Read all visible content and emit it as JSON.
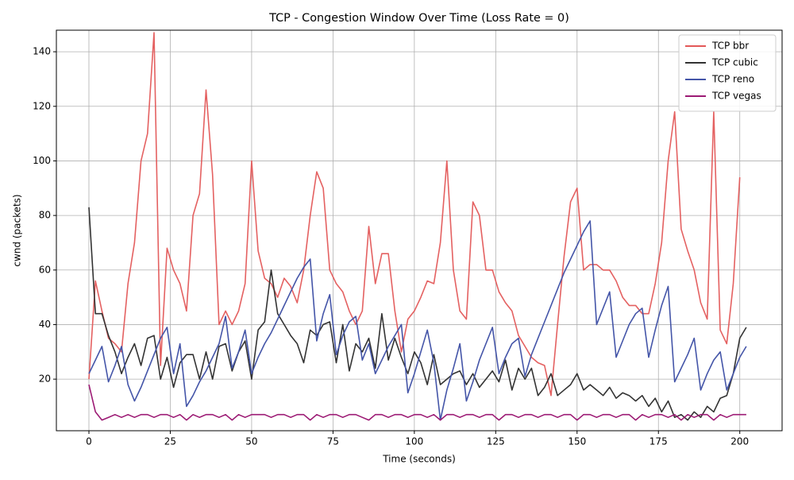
{
  "chart_data": {
    "type": "line",
    "title": "TCP - Congestion Window Over Time (Loss Rate = 0)",
    "x_label": "Time (seconds)",
    "y_label": "cwnd (packets)",
    "xlim": [
      -10,
      213
    ],
    "ylim": [
      1.1,
      147.9
    ],
    "xticks": [
      0,
      25,
      50,
      75,
      100,
      125,
      150,
      175,
      200
    ],
    "yticks": [
      20,
      40,
      60,
      80,
      100,
      120,
      140
    ],
    "grid": true,
    "legend": "upper right",
    "x": [
      0,
      2,
      4,
      6,
      8,
      10,
      12,
      14,
      16,
      18,
      20,
      22,
      24,
      26,
      28,
      30,
      32,
      34,
      36,
      38,
      40,
      42,
      44,
      46,
      48,
      50,
      52,
      54,
      56,
      58,
      60,
      62,
      64,
      66,
      68,
      70,
      72,
      74,
      76,
      78,
      80,
      82,
      84,
      86,
      88,
      90,
      92,
      94,
      96,
      98,
      100,
      102,
      104,
      106,
      108,
      110,
      112,
      114,
      116,
      118,
      120,
      122,
      124,
      126,
      128,
      130,
      132,
      134,
      136,
      138,
      140,
      142,
      144,
      146,
      148,
      150,
      152,
      154,
      156,
      158,
      160,
      162,
      164,
      166,
      168,
      170,
      172,
      174,
      176,
      178,
      180,
      182,
      184,
      186,
      188,
      190,
      192,
      194,
      196,
      198,
      200,
      202
    ],
    "series": [
      {
        "name": "TCP bbr",
        "color": "#e35858",
        "values": [
          20,
          56,
          45,
          35,
          33,
          30,
          55,
          70,
          100,
          110,
          147,
          25,
          68,
          60,
          55,
          45,
          80,
          88,
          126,
          95,
          40,
          45,
          40,
          45,
          55,
          100,
          67,
          57,
          55,
          50,
          57,
          54,
          48,
          60,
          80,
          96,
          90,
          60,
          55,
          52,
          45,
          40,
          45,
          76,
          55,
          66,
          66,
          45,
          30,
          42,
          45,
          50,
          56,
          55,
          70,
          100,
          60,
          45,
          42,
          85,
          80,
          60,
          60,
          52,
          48,
          45,
          36,
          32,
          28,
          26,
          25,
          14,
          40,
          65,
          85,
          90,
          60,
          62,
          62,
          60,
          60,
          56,
          50,
          47,
          47,
          44,
          44,
          55,
          70,
          100,
          118,
          75,
          67,
          60,
          48,
          42,
          118,
          38,
          33,
          55,
          94,
          null
        ]
      },
      {
        "name": "TCP cubic",
        "color": "#333333",
        "values": [
          83,
          44,
          44,
          36,
          30,
          22,
          28,
          33,
          25,
          35,
          36,
          20,
          28,
          17,
          26,
          29,
          29,
          20,
          30,
          20,
          32,
          33,
          23,
          30,
          34,
          20,
          38,
          41,
          60,
          44,
          40,
          36,
          33,
          26,
          38,
          36,
          40,
          41,
          26,
          40,
          23,
          33,
          30,
          35,
          24,
          44,
          27,
          35,
          28,
          22,
          30,
          26,
          18,
          29,
          18,
          20,
          22,
          23,
          18,
          22,
          17,
          20,
          23,
          19,
          27,
          16,
          24,
          20,
          24,
          14,
          17,
          22,
          14,
          16,
          18,
          22,
          16,
          18,
          16,
          14,
          17,
          13,
          15,
          14,
          12,
          14,
          10,
          13,
          8,
          12,
          6,
          7,
          5,
          8,
          6,
          10,
          8,
          13,
          14,
          22,
          35,
          39
        ]
      },
      {
        "name": "TCP reno",
        "color": "#4455a8",
        "values": [
          22,
          27,
          32,
          19,
          25,
          32,
          18,
          12,
          17,
          23,
          29,
          35,
          39,
          22,
          33,
          10,
          14,
          19,
          23,
          28,
          33,
          43,
          24,
          30,
          38,
          22,
          28,
          33,
          37,
          42,
          47,
          52,
          57,
          61,
          64,
          34,
          44,
          51,
          29,
          36,
          41,
          43,
          27,
          33,
          22,
          27,
          32,
          36,
          40,
          15,
          22,
          30,
          38,
          26,
          5,
          16,
          24,
          33,
          12,
          19,
          27,
          33,
          39,
          22,
          28,
          33,
          35,
          21,
          29,
          35,
          41,
          47,
          53,
          59,
          64,
          69,
          74,
          78,
          40,
          46,
          52,
          28,
          34,
          40,
          44,
          46,
          28,
          38,
          47,
          54,
          19,
          24,
          29,
          35,
          16,
          22,
          27,
          30,
          16,
          22,
          28,
          32
        ]
      },
      {
        "name": "TCP vegas",
        "color": "#9c1a74",
        "values": [
          18,
          8,
          5,
          6,
          7,
          6,
          7,
          6,
          7,
          7,
          6,
          7,
          7,
          6,
          7,
          5,
          7,
          6,
          7,
          7,
          6,
          7,
          5,
          7,
          6,
          7,
          7,
          7,
          6,
          7,
          7,
          6,
          7,
          7,
          5,
          7,
          6,
          7,
          7,
          6,
          7,
          7,
          6,
          5,
          7,
          7,
          6,
          7,
          7,
          6,
          7,
          7,
          6,
          7,
          5,
          7,
          7,
          6,
          7,
          7,
          6,
          7,
          7,
          5,
          7,
          7,
          6,
          7,
          7,
          6,
          7,
          7,
          6,
          7,
          7,
          5,
          7,
          7,
          6,
          7,
          7,
          6,
          7,
          7,
          5,
          7,
          6,
          7,
          7,
          6,
          7,
          5,
          7,
          6,
          7,
          7,
          5,
          7,
          6,
          7,
          7,
          7
        ]
      }
    ]
  }
}
